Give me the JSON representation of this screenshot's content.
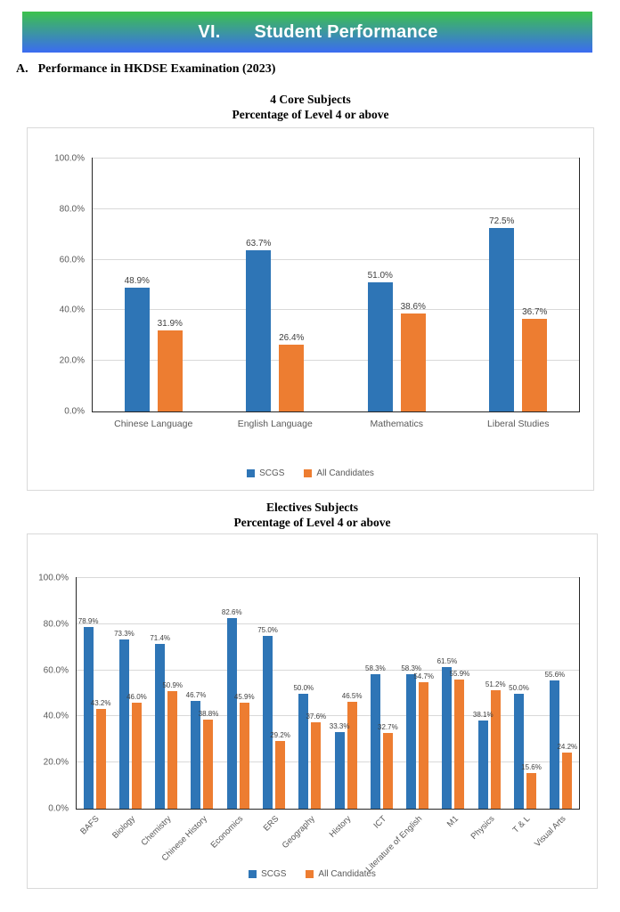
{
  "banner": {
    "section_number": "VI.",
    "title": "Student Performance",
    "gradient_top": "#3CC24C",
    "gradient_bottom": "#3B6BF2",
    "text_color": "#FFFFFF"
  },
  "section_heading": {
    "label": "A.",
    "text": "Performance in HKDSE Examination (2023)"
  },
  "chart_data": [
    {
      "type": "bar",
      "title": "4 Core Subjects",
      "subtitle": "Percentage of Level 4 or above",
      "categories": [
        "Chinese Language",
        "English Language",
        "Mathematics",
        "Liberal Studies"
      ],
      "series": [
        {
          "name": "SCGS",
          "color": "#2E75B6",
          "values": [
            48.9,
            63.7,
            51.0,
            72.5
          ]
        },
        {
          "name": "All Candidates",
          "color": "#ED7D31",
          "values": [
            31.9,
            26.4,
            38.6,
            36.7
          ]
        }
      ],
      "ylim": [
        0,
        100
      ],
      "yticks": [
        "0.0%",
        "20.0%",
        "40.0%",
        "60.0%",
        "80.0%",
        "100.0%"
      ],
      "grid": true,
      "legend_position": "bottom",
      "x_label_rotation": 0,
      "data_labels": true
    },
    {
      "type": "bar",
      "title": "Electives Subjects",
      "subtitle": "Percentage of Level 4 or above",
      "categories": [
        "BAFS",
        "Biology",
        "Chemistry",
        "Chinese History",
        "Economics",
        "ERS",
        "Geography",
        "History",
        "ICT",
        "Literature of English",
        "M1",
        "Physics",
        "T & L",
        "Visual Arts"
      ],
      "series": [
        {
          "name": "SCGS",
          "color": "#2E75B6",
          "values": [
            78.9,
            73.3,
            71.4,
            46.7,
            82.6,
            75.0,
            50.0,
            33.3,
            58.3,
            58.3,
            61.5,
            38.1,
            50.0,
            55.6
          ]
        },
        {
          "name": "All Candidates",
          "color": "#ED7D31",
          "values": [
            43.2,
            46.0,
            50.9,
            38.8,
            45.9,
            29.2,
            37.6,
            46.5,
            32.7,
            54.7,
            55.9,
            51.2,
            15.6,
            24.2
          ]
        }
      ],
      "ylim": [
        0,
        100
      ],
      "yticks": [
        "0.0%",
        "20.0%",
        "40.0%",
        "60.0%",
        "80.0%",
        "100.0%"
      ],
      "grid": true,
      "legend_position": "bottom",
      "x_label_rotation": 45,
      "data_labels": true
    }
  ]
}
